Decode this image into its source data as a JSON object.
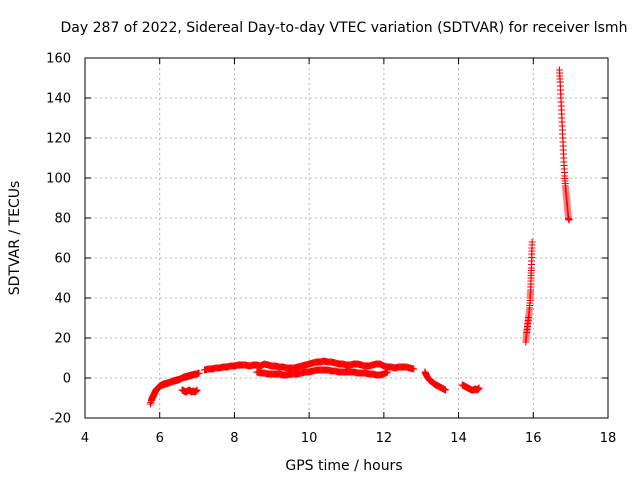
{
  "chart_data": {
    "type": "scatter",
    "title": "Day 287 of 2022, Sidereal Day-to-day VTEC variation (SDTVAR) for receiver lsmh",
    "xlabel": "GPS time / hours",
    "ylabel": "SDTVAR / TECUs",
    "xlim": [
      4,
      18
    ],
    "ylim": [
      -20,
      160
    ],
    "xticks": [
      4,
      6,
      8,
      10,
      12,
      14,
      16,
      18
    ],
    "yticks": [
      -20,
      0,
      20,
      40,
      60,
      80,
      100,
      120,
      140,
      160
    ],
    "grid": true,
    "marker": "plus",
    "color": "#ff0000",
    "series": [
      {
        "name": "SDTVAR",
        "segments": [
          {
            "x": [
              5.75,
              5.8,
              5.85,
              5.9,
              5.95,
              6.0,
              6.05,
              6.1,
              6.2,
              6.3,
              6.4,
              6.5,
              6.6,
              6.7,
              6.8,
              6.9,
              7.0,
              7.05
            ],
            "y": [
              -13,
              -10,
              -8,
              -6,
              -5,
              -4,
              -3.5,
              -3,
              -2.5,
              -2,
              -1.5,
              -1,
              0,
              0.5,
              1,
              1.5,
              2,
              2.5
            ]
          },
          {
            "x": [
              5.78,
              5.83,
              5.88,
              5.93,
              5.98,
              6.08,
              6.15,
              6.25,
              6.35,
              6.45,
              6.55,
              6.65,
              6.75,
              6.85,
              6.95
            ],
            "y": [
              -11,
              -9,
              -7,
              -5.5,
              -4.5,
              -3.5,
              -3,
              -2.5,
              -1.5,
              -1,
              -0.5,
              0.5,
              1,
              1.5,
              2
            ]
          },
          {
            "x": [
              6.6,
              6.65,
              6.7,
              6.75,
              6.8,
              6.85,
              6.9,
              6.95,
              7.0
            ],
            "y": [
              -6,
              -6.5,
              -7,
              -6.5,
              -6,
              -7,
              -6.5,
              -7,
              -6
            ]
          },
          {
            "x": [
              7.2,
              7.3,
              7.4,
              7.5,
              7.6,
              7.7,
              7.8,
              7.9,
              8.0,
              8.1,
              8.2,
              8.3,
              8.4,
              8.5,
              8.6,
              8.7,
              8.8,
              8.9,
              9.0,
              9.1,
              9.2,
              9.3,
              9.4,
              9.5,
              9.6,
              9.7,
              9.8,
              9.9,
              10.0,
              10.1,
              10.2,
              10.3,
              10.4,
              10.5,
              10.6,
              10.7,
              10.8,
              10.9,
              11.0,
              11.1,
              11.2,
              11.3,
              11.4,
              11.5,
              11.6,
              11.7,
              11.8,
              11.9,
              12.0,
              12.1,
              12.2,
              12.3,
              12.4,
              12.5,
              12.6,
              12.7,
              12.8
            ],
            "y": [
              4,
              4.5,
              4.5,
              5,
              5,
              5.5,
              5.5,
              6,
              6,
              6.5,
              6.5,
              6.5,
              6,
              6.5,
              6.5,
              6,
              7,
              6.5,
              6,
              6,
              5.5,
              5.5,
              5,
              5,
              5,
              5.5,
              6,
              6.5,
              7,
              7.5,
              8,
              8,
              8.5,
              8,
              8,
              7.5,
              7,
              7,
              6.5,
              6.5,
              7,
              7,
              6.5,
              6,
              6,
              6.5,
              7,
              7,
              6,
              5.5,
              5.5,
              5,
              5.5,
              5.5,
              5.5,
              5,
              4.5
            ]
          },
          {
            "x": [
              8.6,
              8.7,
              8.8,
              8.9,
              9.0,
              9.1,
              9.2,
              9.3,
              9.4,
              9.5,
              9.6,
              9.7,
              9.8,
              9.9,
              10.0,
              10.1,
              10.2,
              10.3,
              10.4,
              10.5,
              10.6,
              10.7,
              10.8,
              10.9,
              11.0,
              11.1,
              11.2,
              11.3,
              11.4,
              11.5,
              11.6,
              11.7,
              11.8,
              11.9,
              12.0,
              12.1
            ],
            "y": [
              3,
              2.5,
              2.5,
              2,
              2,
              2,
              2,
              1.5,
              1.5,
              2,
              2,
              2,
              2.5,
              3,
              3,
              3.5,
              4,
              4,
              4,
              4,
              3.5,
              3.5,
              3,
              3,
              3,
              3,
              3,
              2.5,
              2.5,
              2.5,
              2,
              2,
              1.5,
              1.5,
              2,
              3
            ]
          },
          {
            "x": [
              13.1,
              13.15,
              13.2,
              13.25,
              13.3,
              13.35,
              13.4,
              13.45,
              13.5,
              13.55,
              13.6,
              13.65
            ],
            "y": [
              3,
              1,
              -0.5,
              -1.5,
              -2,
              -3,
              -3.5,
              -4,
              -4.5,
              -5,
              -5.5,
              -6
            ]
          },
          {
            "x": [
              14.1,
              14.15,
              14.2,
              14.25,
              14.3,
              14.35,
              14.4,
              14.45,
              14.5,
              14.55
            ],
            "y": [
              -3.5,
              -4,
              -4.5,
              -5,
              -5.5,
              -6,
              -6,
              -5.5,
              -6,
              -5
            ]
          },
          {
            "x": [
              15.8,
              15.82,
              15.84,
              15.86,
              15.88,
              15.9,
              15.92,
              15.93,
              15.94,
              15.95,
              15.96,
              15.97
            ],
            "y": [
              18,
              22,
              25,
              28,
              31,
              35,
              40,
              44,
              50,
              55,
              62,
              68
            ]
          },
          {
            "x": [
              16.7,
              16.72,
              16.74,
              16.76,
              16.78,
              16.8,
              16.82,
              16.84,
              16.86,
              16.88,
              16.9,
              16.92,
              16.94,
              16.96
            ],
            "y": [
              154,
              148,
              140,
              132,
              124,
              116,
              108,
              101,
              96,
              92,
              88,
              84,
              80,
              79
            ]
          }
        ]
      }
    ]
  }
}
